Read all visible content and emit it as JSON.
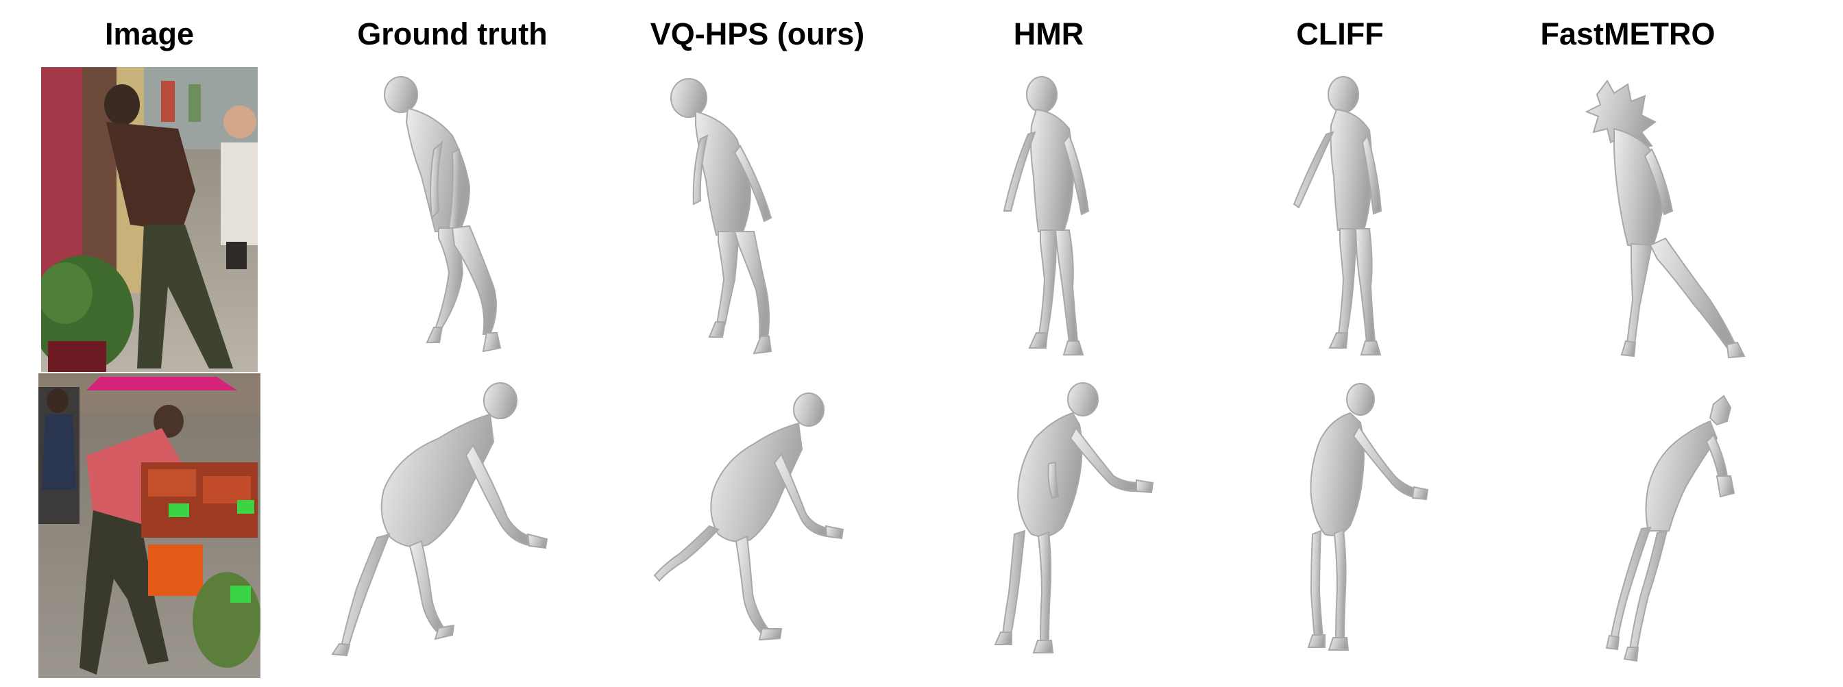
{
  "columns": {
    "image": "Image",
    "ground_truth": "Ground truth",
    "vq_hps": "VQ-HPS (ours)",
    "hmr": "HMR",
    "cliff": "CLIFF",
    "fastmetro": "FastMETRO"
  },
  "rows": [
    {
      "photo": "street-scene-man-leaning"
    },
    {
      "photo": "market-scene-woman-reaching"
    }
  ],
  "colors": {
    "mesh": "#c8c8c8",
    "mesh_shadow": "#9e9e9e",
    "mesh_highlight": "#ececec",
    "background": "#ffffff"
  }
}
